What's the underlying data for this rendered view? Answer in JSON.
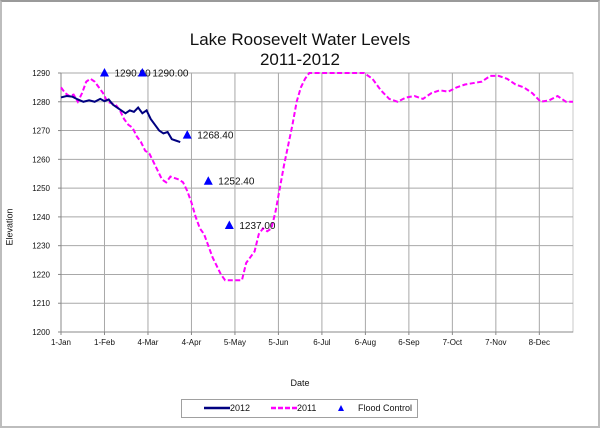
{
  "chart_data": {
    "type": "line",
    "title": "Lake Roosevelt Water Levels",
    "subtitle": "2011-2012",
    "xlabel": "Date",
    "ylabel": "Elevation",
    "ylim": [
      1200,
      1290
    ],
    "xlim_days": [
      0,
      365
    ],
    "y_ticks": [
      1200,
      1210,
      1220,
      1230,
      1240,
      1250,
      1260,
      1270,
      1280,
      1290
    ],
    "x_ticks": [
      {
        "label": "1-Jan",
        "day": 0
      },
      {
        "label": "1-Feb",
        "day": 31
      },
      {
        "label": "4-Mar",
        "day": 62
      },
      {
        "label": "4-Apr",
        "day": 93
      },
      {
        "label": "5-May",
        "day": 124
      },
      {
        "label": "5-Jun",
        "day": 155
      },
      {
        "label": "6-Jul",
        "day": 186
      },
      {
        "label": "6-Aug",
        "day": 217
      },
      {
        "label": "6-Sep",
        "day": 248
      },
      {
        "label": "7-Oct",
        "day": 279
      },
      {
        "label": "7-Nov",
        "day": 310
      },
      {
        "label": "8-Dec",
        "day": 341
      }
    ],
    "grid": true,
    "legend_position": "bottom",
    "series": [
      {
        "name": "2012",
        "color": "#000080",
        "style": "solid",
        "x_days": [
          0,
          4,
          8,
          12,
          16,
          20,
          24,
          28,
          31,
          34,
          37,
          40,
          43,
          46,
          49,
          52,
          55,
          58,
          61,
          64,
          67,
          70,
          73,
          76,
          79,
          82,
          85
        ],
        "values": [
          1281.5,
          1282,
          1281.8,
          1280.8,
          1280,
          1280.5,
          1280,
          1281,
          1280.2,
          1280.8,
          1279,
          1278,
          1277,
          1276,
          1277,
          1276.5,
          1278,
          1276,
          1277,
          1274,
          1272,
          1270,
          1269,
          1269.5,
          1267,
          1266.5,
          1266
        ]
      },
      {
        "name": "2011",
        "color": "#ff00ff",
        "style": "dashed",
        "x_days": [
          0,
          3,
          6,
          9,
          12,
          15,
          18,
          21,
          24,
          27,
          30,
          33,
          36,
          39,
          42,
          45,
          48,
          51,
          54,
          57,
          60,
          63,
          66,
          69,
          72,
          75,
          78,
          81,
          84,
          87,
          90,
          93,
          96,
          99,
          102,
          105,
          108,
          111,
          114,
          117,
          120,
          123,
          126,
          129,
          132,
          135,
          138,
          141,
          144,
          147,
          150,
          153,
          156,
          159,
          162,
          165,
          168,
          171,
          174,
          177,
          180,
          183,
          186,
          192,
          198,
          204,
          210,
          216,
          222,
          228,
          234,
          240,
          246,
          252,
          258,
          264,
          270,
          276,
          282,
          288,
          294,
          300,
          306,
          312,
          318,
          324,
          330,
          336,
          342,
          348,
          354,
          360,
          365
        ],
        "values": [
          1285,
          1283,
          1282,
          1282.5,
          1280,
          1283,
          1287,
          1288,
          1287,
          1285,
          1283,
          1280,
          1279.5,
          1279,
          1277,
          1274,
          1272,
          1271,
          1268,
          1266,
          1263,
          1262,
          1259,
          1256,
          1253,
          1252,
          1254,
          1253.5,
          1253,
          1252,
          1249,
          1245,
          1240,
          1236,
          1234,
          1230,
          1226,
          1223,
          1220,
          1218,
          1218,
          1218,
          1218,
          1218,
          1224,
          1226,
          1228,
          1234,
          1236,
          1235,
          1236,
          1242,
          1250,
          1258,
          1265,
          1272,
          1280,
          1285,
          1288,
          1290,
          1290,
          1290,
          1290,
          1290,
          1290,
          1290,
          1290,
          1290,
          1288,
          1284,
          1281,
          1280,
          1281.5,
          1282,
          1281,
          1283,
          1284,
          1283.5,
          1285,
          1286,
          1286.5,
          1287,
          1289,
          1289,
          1288,
          1286,
          1285,
          1283,
          1280,
          1280.5,
          1282,
          1280,
          1280
        ]
      },
      {
        "name": "Flood Control",
        "color": "#0000ff",
        "style": "marker-triangle",
        "x_days": [
          31,
          58,
          90,
          105,
          120
        ],
        "values": [
          1290.0,
          1290.0,
          1268.4,
          1252.4,
          1237.0
        ],
        "labels": [
          "1290.00",
          "1290.00",
          "1268.40",
          "1252.40",
          "1237.00"
        ]
      }
    ]
  }
}
